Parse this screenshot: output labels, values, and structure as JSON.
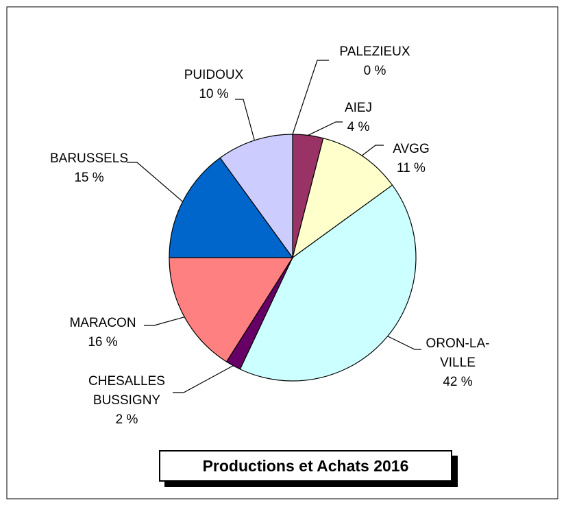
{
  "chart_data": {
    "type": "pie",
    "title": "Productions et Achats 2016",
    "categories": [
      "PALEZIEUX",
      "AIEJ",
      "AVGG",
      "ORON-LA-VILLE",
      "CHESALLES BUSSIGNY",
      "MARACON",
      "BARUSSELS",
      "PUIDOUX"
    ],
    "values": [
      0,
      4,
      11,
      42,
      2,
      16,
      15,
      10
    ],
    "value_labels": [
      "0 %",
      "4 %",
      "11 %",
      "42 %",
      "2 %",
      "16 %",
      "15 %",
      "10 %"
    ],
    "colors": [
      "#333399",
      "#993366",
      "#ffffcc",
      "#ccffff",
      "#660066",
      "#ff8080",
      "#0066cc",
      "#ccccff"
    ]
  }
}
